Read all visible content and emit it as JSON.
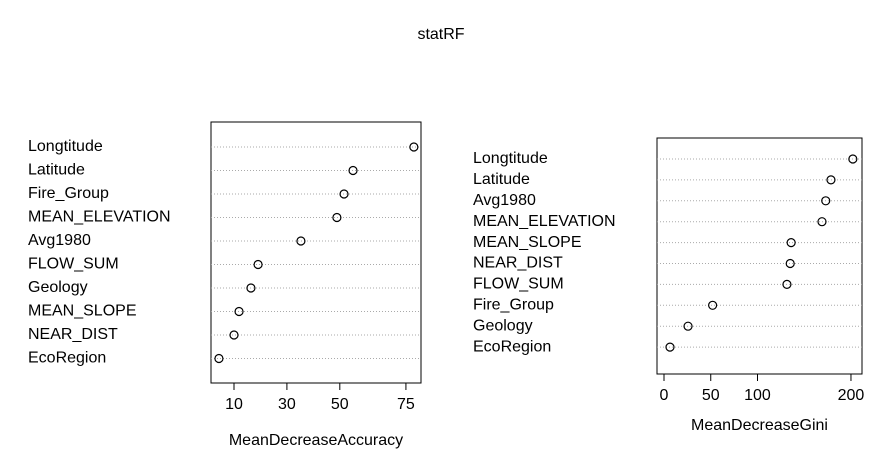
{
  "title": "statRF",
  "chart_data": [
    {
      "type": "dot",
      "xlabel": "MeanDecreaseAccuracy",
      "categories": [
        "Longtitude",
        "Latitude",
        "Fire_Group",
        "MEAN_ELEVATION",
        "Avg1980",
        "FLOW_SUM",
        "Geology",
        "MEAN_SLOPE",
        "NEAR_DIST",
        "EcoRegion"
      ],
      "values": [
        78,
        55,
        51.6,
        48.9,
        35.3,
        19.1,
        16.4,
        11.9,
        10,
        4.3
      ],
      "xlim": [
        1.3,
        80.7
      ],
      "xticks": [
        10,
        30,
        50,
        75
      ],
      "grid": true,
      "color": "#000000"
    },
    {
      "type": "dot",
      "xlabel": "MeanDecreaseGini",
      "categories": [
        "Longtitude",
        "Latitude",
        "Avg1980",
        "MEAN_ELEVATION",
        "MEAN_SLOPE",
        "NEAR_DIST",
        "FLOW_SUM",
        "Fire_Group",
        "Geology",
        "EcoRegion"
      ],
      "values": [
        202,
        178.6,
        173,
        169,
        136,
        135,
        131.5,
        52,
        25.7,
        6.4
      ],
      "xlim": [
        -7.5,
        211.8
      ],
      "xticks": [
        0,
        50,
        100,
        200
      ],
      "grid": true,
      "color": "#000000"
    }
  ]
}
